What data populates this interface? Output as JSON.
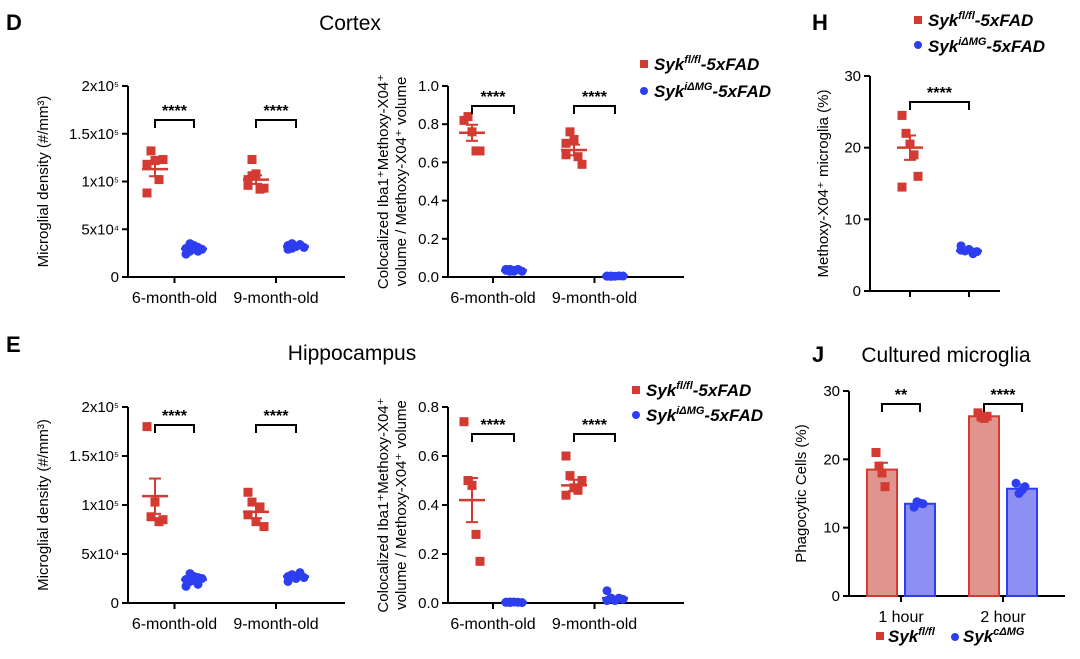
{
  "colors": {
    "red": "#d23a32",
    "blue": "#2d3ef0",
    "red_bar": "#e0948e",
    "blue_bar": "#8e8ff2"
  },
  "labels": {
    "cortex_title": "Cortex",
    "hippo_title": "Hippocampus",
    "cultured_title": "Cultured microglia",
    "panel_D": "D",
    "panel_E": "E",
    "panel_H": "H",
    "panel_J": "J"
  },
  "legend": {
    "fl_base": "Syk",
    "fl_sup": "fl/fl",
    "fl_suffix": "-5xFAD",
    "img_base": "Syk",
    "img_sup": "iΔMG",
    "img_suffix": "-5xFAD",
    "j_fl_base": "Syk",
    "j_fl_sup": "fl/fl",
    "j_c_base": "Syk",
    "j_c_sup": "cΔMG"
  },
  "chart_data": [
    {
      "id": "D1",
      "type": "scatter",
      "categories": [
        "6-month-old",
        "9-month-old"
      ],
      "ylabel": "Microglial density (#/mm³)",
      "ylim": [
        0,
        200000
      ],
      "yticks": [
        "0",
        "5x10⁴",
        "1x10⁵",
        "1.5x10⁵",
        "2x10⁵"
      ],
      "significance": [
        "****",
        "****"
      ],
      "series": [
        {
          "name": "Sykfl/fl-5xFAD",
          "marker": "square",
          "points": [
            [
              118000,
              132000,
              122000,
              102000,
              123000,
              88000
            ],
            [
              96000,
              123000,
              108000,
              92000,
              93000,
              102000,
              106000
            ]
          ],
          "mean": [
            113000,
            102000
          ],
          "sem": [
            7500,
            4500
          ]
        },
        {
          "name": "SykiΔMG-5xFAD",
          "marker": "circle",
          "points": [
            [
              30000,
              27000,
              33000,
              31000,
              29000,
              24000,
              35000,
              30000,
              27000
            ],
            [
              33000,
              30000,
              32000,
              34000,
              31000,
              29000,
              35000,
              32000
            ]
          ],
          "mean": [
            29500,
            32000
          ],
          "sem": [
            1100,
            700
          ]
        }
      ]
    },
    {
      "id": "D2",
      "type": "scatter",
      "categories": [
        "6-month-old",
        "9-month-old"
      ],
      "ylabel": "Colocalized Iba1⁺Methoxy-X04⁺ volume / Methoxy-X04⁺ volume",
      "ylim": [
        0,
        1.0
      ],
      "yticks": [
        "0.0",
        "0.2",
        "0.4",
        "0.6",
        "0.8",
        "1.0"
      ],
      "significance": [
        "****",
        "****"
      ],
      "series": [
        {
          "name": "Sykfl/fl-5xFAD",
          "marker": "square",
          "points": [
            [
              0.82,
              0.84,
              0.76,
              0.66,
              0.66
            ],
            [
              0.7,
              0.76,
              0.72,
              0.63,
              0.59,
              0.64
            ]
          ],
          "mean": [
            0.755,
            0.665
          ],
          "sem": [
            0.042,
            0.028
          ]
        },
        {
          "name": "SykiΔMG-5xFAD",
          "marker": "circle",
          "points": [
            [
              0.04,
              0.03,
              0.035,
              0.04,
              0.03,
              0.035,
              0.04,
              0.03
            ],
            [
              0.005,
              0.003,
              0.004,
              0.006,
              0.005,
              0.004,
              0.005
            ]
          ],
          "mean": [
            0.035,
            0.005
          ],
          "sem": [
            0.003,
            0.001
          ]
        }
      ]
    },
    {
      "id": "E1",
      "type": "scatter",
      "categories": [
        "6-month-old",
        "9-month-old"
      ],
      "ylabel": "Microglial density (#/mm³)",
      "ylim": [
        0,
        200000
      ],
      "yticks": [
        "0",
        "5x10⁴",
        "1x10⁵",
        "1.5x10⁵",
        "2x10⁵"
      ],
      "significance": [
        "****",
        "****"
      ],
      "series": [
        {
          "name": "Sykfl/fl-5xFAD",
          "marker": "square",
          "points": [
            [
              180000,
              88000,
              103000,
              83000,
              85000
            ],
            [
              113000,
              103000,
              83000,
              98000,
              78000,
              90000
            ]
          ],
          "mean": [
            109000,
            93000
          ],
          "sem": [
            18000,
            6500
          ]
        },
        {
          "name": "SykiΔMG-5xFAD",
          "marker": "circle",
          "points": [
            [
              24000,
              22000,
              27000,
              19000,
              25000,
              17000,
              30000,
              23000,
              26000
            ],
            [
              27000,
              29000,
              25000,
              31000,
              26000,
              22000,
              28000,
              27000
            ]
          ],
          "mean": [
            24000,
            27000
          ],
          "sem": [
            1400,
            1100
          ]
        }
      ]
    },
    {
      "id": "E2",
      "type": "scatter",
      "categories": [
        "6-month-old",
        "9-month-old"
      ],
      "ylabel": "Colocalized Iba1⁺Methoxy-X04⁺ volume / Methoxy-X04⁺ volume",
      "ylim": [
        0,
        0.8
      ],
      "yticks": [
        "0.0",
        "0.2",
        "0.4",
        "0.6",
        "0.8"
      ],
      "significance": [
        "****",
        "****"
      ],
      "series": [
        {
          "name": "Sykfl/fl-5xFAD",
          "marker": "square",
          "points": [
            [
              0.74,
              0.5,
              0.48,
              0.28,
              0.17
            ],
            [
              0.6,
              0.52,
              0.47,
              0.46,
              0.5,
              0.44
            ]
          ],
          "mean": [
            0.42,
            0.48
          ],
          "sem": [
            0.09,
            0.023
          ]
        },
        {
          "name": "SykiΔMG-5xFAD",
          "marker": "circle",
          "points": [
            [
              0.003,
              0.002,
              0.004,
              0.003,
              0.002,
              0.003,
              0.004
            ],
            [
              0.05,
              0.02,
              0.01,
              0.02,
              0.015,
              0.01,
              0.02
            ]
          ],
          "mean": [
            0.003,
            0.02
          ],
          "sem": [
            0.001,
            0.005
          ]
        }
      ]
    },
    {
      "id": "H",
      "type": "scatter",
      "categories": [
        "",
        ""
      ],
      "ylabel": "Methoxy-X04⁺ microglia (%)",
      "ylim": [
        0,
        30
      ],
      "yticks": [
        "0",
        "10",
        "20",
        "30"
      ],
      "significance": [
        "****"
      ],
      "series": [
        {
          "name": "Sykfl/fl-5xFAD",
          "marker": "square",
          "points": [
            [
              24.5,
              22.0,
              20.5,
              19.0,
              16.0,
              14.5
            ]
          ],
          "mean": [
            20.0
          ],
          "sem": [
            1.7
          ]
        },
        {
          "name": "SykiΔMG-5xFAD",
          "marker": "circle",
          "points": [
            [
              6.3,
              5.6,
              5.8,
              5.2,
              5.5,
              5.7,
              5.6
            ]
          ],
          "mean": [
            5.6
          ],
          "sem": [
            0.3
          ]
        }
      ]
    },
    {
      "id": "J",
      "type": "bar",
      "categories": [
        "1 hour",
        "2 hour"
      ],
      "ylabel": "Phagocytic Cells (%)",
      "ylim": [
        0,
        30
      ],
      "yticks": [
        "0",
        "10",
        "20",
        "30"
      ],
      "significance": [
        "**",
        "****"
      ],
      "series": [
        {
          "name": "Sykfl/fl",
          "marker": "square",
          "values": [
            18.5,
            26.3
          ],
          "sem": [
            1.0,
            0.3
          ],
          "points": [
            [
              21.0,
              19.0,
              18.0,
              16.0
            ],
            [
              26.8,
              26.2,
              26.0,
              26.3
            ]
          ]
        },
        {
          "name": "SykcΔMG",
          "marker": "circle",
          "values": [
            13.5,
            15.7
          ],
          "sem": [
            0.3,
            0.6
          ],
          "points": [
            [
              13.0,
              13.8,
              13.6,
              13.5
            ],
            [
              16.5,
              15.0,
              15.5,
              16.0
            ]
          ]
        }
      ]
    }
  ]
}
